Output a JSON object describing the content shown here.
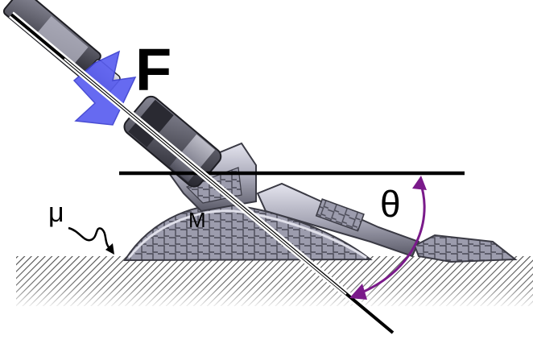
{
  "diagram": {
    "force_label": "F",
    "angle_label": "θ",
    "friction_label": "μ",
    "mass_label": "M",
    "colors": {
      "force_arrow": "#5a5ef0",
      "angle_arc": "#7a1a8a",
      "lines": "#000000",
      "machine_light": "#c9c9d6",
      "machine_dark": "#3c3c46",
      "ground": "#555555"
    }
  }
}
